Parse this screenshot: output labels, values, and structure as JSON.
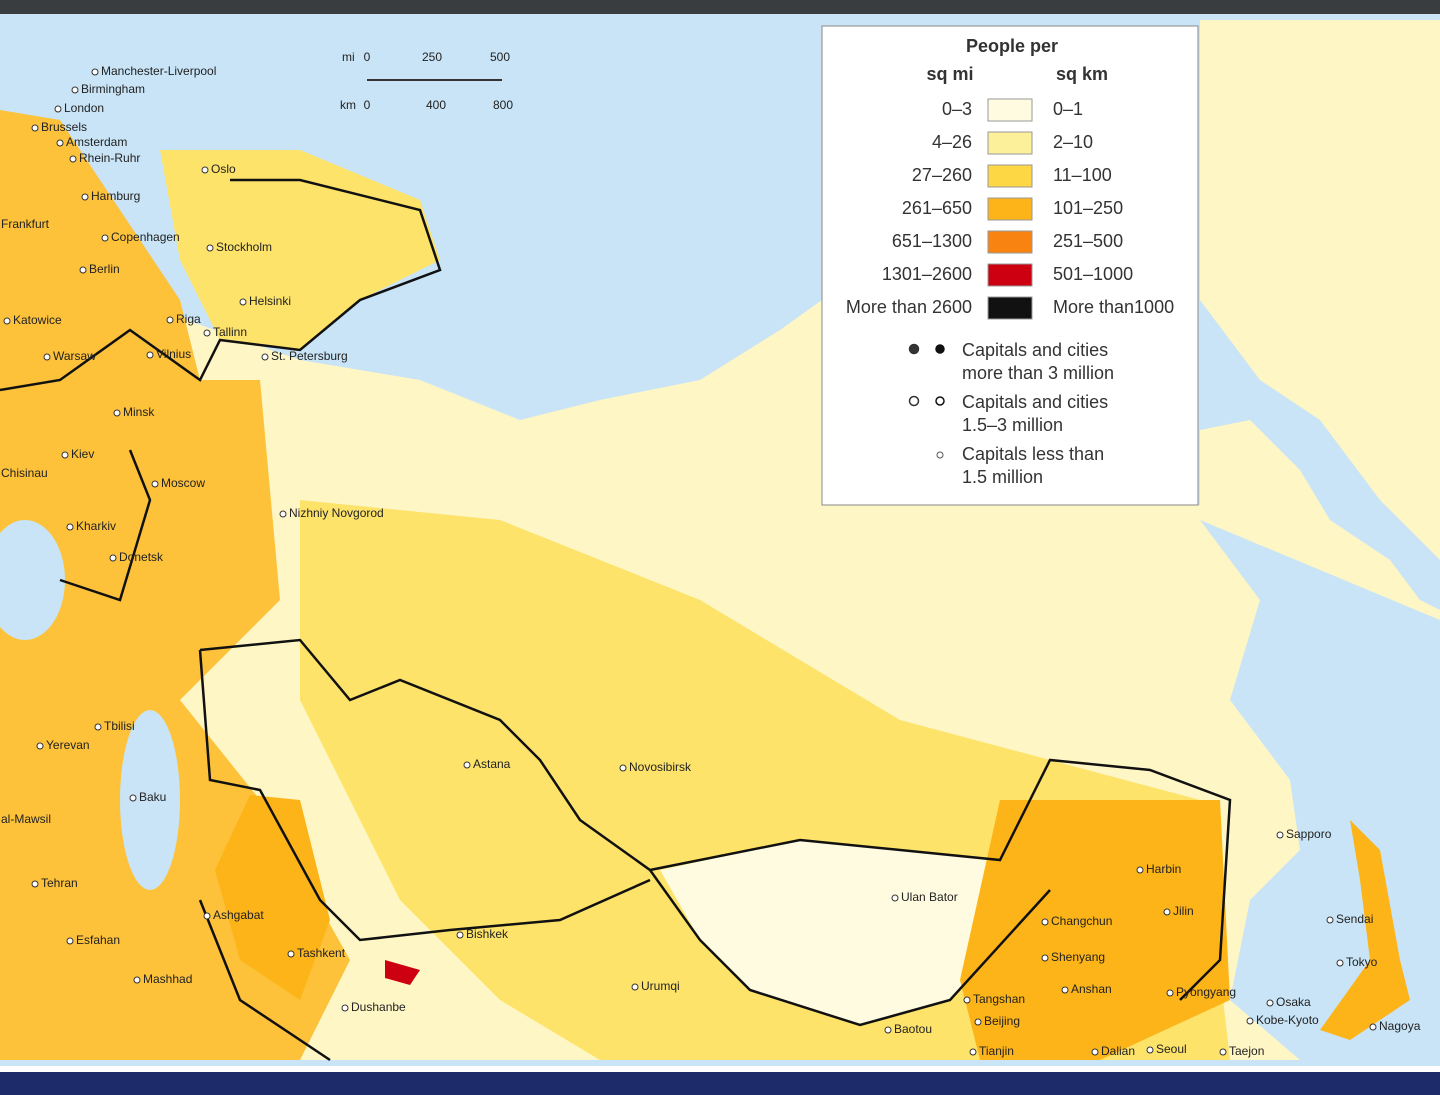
{
  "legend": {
    "title": "People per",
    "col_mi": "sq mi",
    "col_km": "sq km",
    "rows": [
      {
        "sq_mi": "0–3",
        "sq_km": "0–1",
        "color": "#fffbe0"
      },
      {
        "sq_mi": "4–26",
        "sq_km": "2–10",
        "color": "#fdf09a"
      },
      {
        "sq_mi": "27–260",
        "sq_km": "11–100",
        "color": "#fdd844"
      },
      {
        "sq_mi": "261–650",
        "sq_km": "101–250",
        "color": "#fdb419"
      },
      {
        "sq_mi": "651–1300",
        "sq_km": "251–500",
        "color": "#f98310"
      },
      {
        "sq_mi": "1301–2600",
        "sq_km": "501–1000",
        "color": "#cc0010"
      },
      {
        "sq_mi": "More than 2600",
        "sq_km": "More than1000",
        "color": "#111111"
      }
    ],
    "symbols": [
      [
        "Capitals and cities",
        "more than 3 million"
      ],
      [
        "Capitals and cities",
        "1.5–3 million"
      ],
      [
        "Capitals less than",
        "1.5 million"
      ]
    ]
  },
  "scale": {
    "mi": "mi",
    "km": "km",
    "mi_ticks": [
      "0",
      "250",
      "500"
    ],
    "km_ticks": [
      "0",
      "400",
      "800"
    ]
  },
  "cities": [
    "Manchester-Liverpool",
    "Birmingham",
    "London",
    "Brussels",
    "Amsterdam",
    "Rhein-Ruhr",
    "Hamburg",
    "Frankfurt",
    "Oslo",
    "Copenhagen",
    "Stockholm",
    "Berlin",
    "Helsinki",
    "Katowice",
    "Riga",
    "Tallinn",
    "Warsaw",
    "Vilnius",
    "St. Petersburg",
    "Minsk",
    "Kiev",
    "Moscow",
    "Chisinau",
    "Kharkiv",
    "Nizhniy Novgorod",
    "Donetsk",
    "Tbilisi",
    "Yerevan",
    "Baku",
    "al-Mawsil",
    "Tehran",
    "Esfahan",
    "Ashgabat",
    "Mashhad",
    "Tashkent",
    "Dushanbe",
    "Bishkek",
    "Astana",
    "Novosibirsk",
    "Urumqi",
    "Ulan Bator",
    "Baotou",
    "Tangshan",
    "Beijing",
    "Tianjin",
    "Dalian",
    "Seoul",
    "Taejon",
    "Harbin",
    "Jilin",
    "Changchun",
    "Shenyang",
    "Anshan",
    "Pyongyang",
    "Osaka",
    "Kobe-Kyoto",
    "Nagoya",
    "Sapporo",
    "Sendai",
    "Tokyo"
  ]
}
